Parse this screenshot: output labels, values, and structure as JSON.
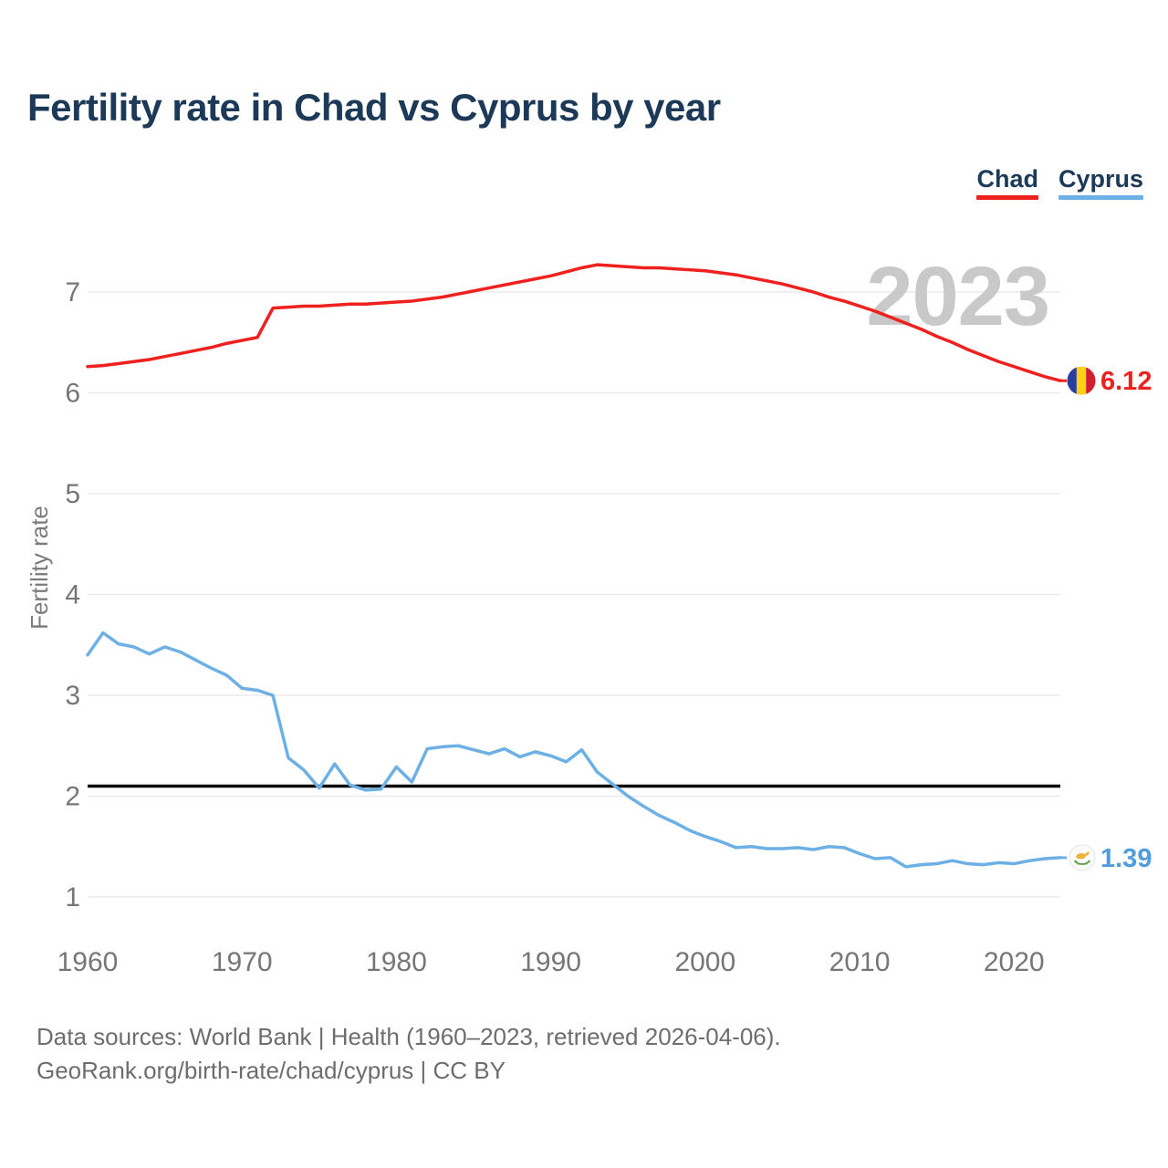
{
  "header": {
    "title": "Fertility rate in Chad vs Cyprus by year"
  },
  "watermark": "2023",
  "legend": {
    "items": [
      {
        "label": "Chad",
        "color": "#ef211e"
      },
      {
        "label": "Cyprus",
        "color": "#6cb0e6"
      }
    ]
  },
  "axis": {
    "y_label": "Fertility rate",
    "y_ticks": [
      "7",
      "6",
      "5",
      "4",
      "3",
      "2",
      "1"
    ],
    "x_ticks": [
      "1960",
      "1970",
      "1980",
      "1990",
      "2000",
      "2010",
      "2020"
    ]
  },
  "chart_data": {
    "type": "line",
    "title": "Fertility rate in Chad vs Cyprus by year",
    "ylabel": "Fertility rate",
    "xlim": [
      1960,
      2023
    ],
    "ylim": [
      1,
      7.6
    ],
    "grid": true,
    "legend_position": "top-right",
    "watermark": "2023",
    "reference_line": {
      "value": 2.1,
      "color": "#0b0b0b"
    },
    "x": [
      1960,
      1961,
      1962,
      1963,
      1964,
      1965,
      1966,
      1967,
      1968,
      1969,
      1970,
      1971,
      1972,
      1973,
      1974,
      1975,
      1976,
      1977,
      1978,
      1979,
      1980,
      1981,
      1982,
      1983,
      1984,
      1985,
      1986,
      1987,
      1988,
      1989,
      1990,
      1991,
      1992,
      1993,
      1994,
      1995,
      1996,
      1997,
      1998,
      1999,
      2000,
      2001,
      2002,
      2003,
      2004,
      2005,
      2006,
      2007,
      2008,
      2009,
      2010,
      2011,
      2012,
      2013,
      2014,
      2015,
      2016,
      2017,
      2018,
      2019,
      2020,
      2021,
      2022,
      2023
    ],
    "series": [
      {
        "name": "Chad",
        "color": "#ef211e",
        "end_label": "6.12",
        "flag": "chad",
        "values": [
          6.26,
          6.27,
          6.29,
          6.31,
          6.33,
          6.36,
          6.39,
          6.42,
          6.45,
          6.49,
          6.52,
          6.55,
          6.84,
          6.85,
          6.86,
          6.86,
          6.87,
          6.88,
          6.88,
          6.89,
          6.9,
          6.91,
          6.93,
          6.95,
          6.98,
          7.01,
          7.04,
          7.07,
          7.1,
          7.13,
          7.16,
          7.2,
          7.24,
          7.27,
          7.26,
          7.25,
          7.24,
          7.24,
          7.23,
          7.22,
          7.21,
          7.19,
          7.17,
          7.14,
          7.11,
          7.08,
          7.04,
          7.0,
          6.95,
          6.91,
          6.86,
          6.81,
          6.75,
          6.69,
          6.63,
          6.56,
          6.5,
          6.43,
          6.37,
          6.31,
          6.26,
          6.21,
          6.16,
          6.12
        ]
      },
      {
        "name": "Cyprus",
        "color": "#6cb0e6",
        "end_label": "1.39",
        "flag": "cyprus",
        "values": [
          3.4,
          3.62,
          3.51,
          3.48,
          3.41,
          3.48,
          3.43,
          3.35,
          3.27,
          3.2,
          3.07,
          3.05,
          3.0,
          2.38,
          2.26,
          2.08,
          2.32,
          2.11,
          2.06,
          2.07,
          2.29,
          2.14,
          2.47,
          2.49,
          2.5,
          2.46,
          2.42,
          2.47,
          2.39,
          2.44,
          2.4,
          2.34,
          2.46,
          2.24,
          2.12,
          2.0,
          1.9,
          1.81,
          1.74,
          1.66,
          1.6,
          1.55,
          1.49,
          1.5,
          1.48,
          1.48,
          1.49,
          1.47,
          1.5,
          1.49,
          1.43,
          1.38,
          1.39,
          1.3,
          1.32,
          1.33,
          1.36,
          1.33,
          1.32,
          1.34,
          1.33,
          1.36,
          1.38,
          1.39
        ]
      }
    ]
  },
  "footer": {
    "line1": "Data sources: World Bank | Health (1960–2023, retrieved 2026-04-06).",
    "line2": "GeoRank.org/birth-rate/chad/cyprus | CC BY"
  }
}
